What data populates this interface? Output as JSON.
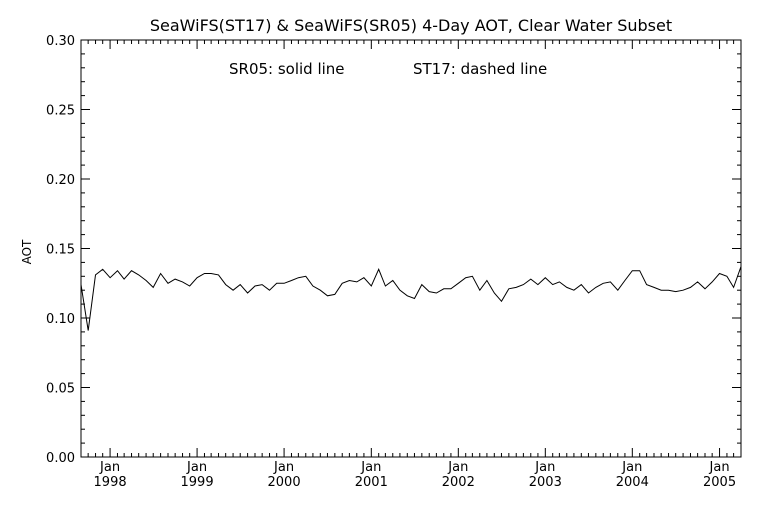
{
  "chart_data": {
    "type": "line",
    "title": "SeaWiFS(ST17) & SeaWiFS(SR05) 4-Day AOT, Clear Water Subset",
    "annotation_left": "SR05: solid line",
    "annotation_right": "ST17: dashed line",
    "ylabel": "AOT",
    "xlabel": "",
    "ylim": [
      0.0,
      0.3
    ],
    "yticks": [
      "0.00",
      "0.05",
      "0.10",
      "0.15",
      "0.20",
      "0.25",
      "0.30"
    ],
    "xlim": [
      "1997-09-01",
      "2005-04-01"
    ],
    "xticks": [
      {
        "month": "Jan",
        "year": "1998",
        "date": "1998-01-01"
      },
      {
        "month": "Jan",
        "year": "1999",
        "date": "1999-01-01"
      },
      {
        "month": "Jan",
        "year": "2000",
        "date": "2000-01-01"
      },
      {
        "month": "Jan",
        "year": "2001",
        "date": "2001-01-01"
      },
      {
        "month": "Jan",
        "year": "2002",
        "date": "2002-01-01"
      },
      {
        "month": "Jan",
        "year": "2003",
        "date": "2003-01-01"
      },
      {
        "month": "Jan",
        "year": "2004",
        "date": "2004-01-01"
      },
      {
        "month": "Jan",
        "year": "2005",
        "date": "2005-01-01"
      }
    ],
    "grid": false,
    "series": [
      {
        "style": "solid",
        "color": "#000000",
        "x": [
          "1997-09-01",
          "1997-10-01",
          "1997-11-01",
          "1997-12-01",
          "1998-01-01",
          "1998-02-01",
          "1998-03-01",
          "1998-04-01",
          "1998-05-01",
          "1998-06-01",
          "1998-07-01",
          "1998-08-01",
          "1998-09-01",
          "1998-10-01",
          "1998-11-01",
          "1998-12-01",
          "1999-01-01",
          "1999-02-01",
          "1999-03-01",
          "1999-04-01",
          "1999-05-01",
          "1999-06-01",
          "1999-07-01",
          "1999-08-01",
          "1999-09-01",
          "1999-10-01",
          "1999-11-01",
          "1999-12-01",
          "2000-01-01",
          "2000-02-01",
          "2000-03-01",
          "2000-04-01",
          "2000-05-01",
          "2000-06-01",
          "2000-07-01",
          "2000-08-01",
          "2000-09-01",
          "2000-10-01",
          "2000-11-01",
          "2000-12-01",
          "2001-01-01",
          "2001-02-01",
          "2001-03-01",
          "2001-04-01",
          "2001-05-01",
          "2001-06-01",
          "2001-07-01",
          "2001-08-01",
          "2001-09-01",
          "2001-10-01",
          "2001-11-01",
          "2001-12-01",
          "2002-01-01",
          "2002-02-01",
          "2002-03-01",
          "2002-04-01",
          "2002-05-01",
          "2002-06-01",
          "2002-07-01",
          "2002-08-01",
          "2002-09-01",
          "2002-10-01",
          "2002-11-01",
          "2002-12-01",
          "2003-01-01",
          "2003-02-01",
          "2003-03-01",
          "2003-04-01",
          "2003-05-01",
          "2003-06-01",
          "2003-07-01",
          "2003-08-01",
          "2003-09-01",
          "2003-10-01",
          "2003-11-01",
          "2003-12-01",
          "2004-01-01",
          "2004-02-01",
          "2004-03-01",
          "2004-04-01",
          "2004-05-01",
          "2004-06-01",
          "2004-07-01",
          "2004-08-01",
          "2004-09-01",
          "2004-10-01",
          "2004-11-01",
          "2004-12-01",
          "2005-01-01",
          "2005-02-01",
          "2005-03-01",
          "2005-04-01"
        ],
        "values": [
          0.124,
          0.091,
          0.131,
          0.135,
          0.129,
          0.134,
          0.128,
          0.134,
          0.131,
          0.127,
          0.122,
          0.132,
          0.125,
          0.128,
          0.126,
          0.123,
          0.129,
          0.132,
          0.132,
          0.131,
          0.124,
          0.12,
          0.124,
          0.118,
          0.123,
          0.124,
          0.12,
          0.125,
          0.125,
          0.127,
          0.129,
          0.13,
          0.123,
          0.12,
          0.116,
          0.117,
          0.125,
          0.127,
          0.126,
          0.129,
          0.123,
          0.135,
          0.123,
          0.127,
          0.12,
          0.116,
          0.114,
          0.124,
          0.119,
          0.118,
          0.121,
          0.121,
          0.125,
          0.129,
          0.13,
          0.12,
          0.127,
          0.118,
          0.112,
          0.121,
          0.122,
          0.124,
          0.128,
          0.124,
          0.129,
          0.124,
          0.126,
          0.122,
          0.12,
          0.124,
          0.118,
          0.122,
          0.125,
          0.126,
          0.12,
          0.127,
          0.134,
          0.134,
          0.124,
          0.122,
          0.12,
          0.12,
          0.119,
          0.12,
          0.122,
          0.126,
          0.121,
          0.126,
          0.132,
          0.13,
          0.122,
          0.137
        ]
      }
    ]
  }
}
